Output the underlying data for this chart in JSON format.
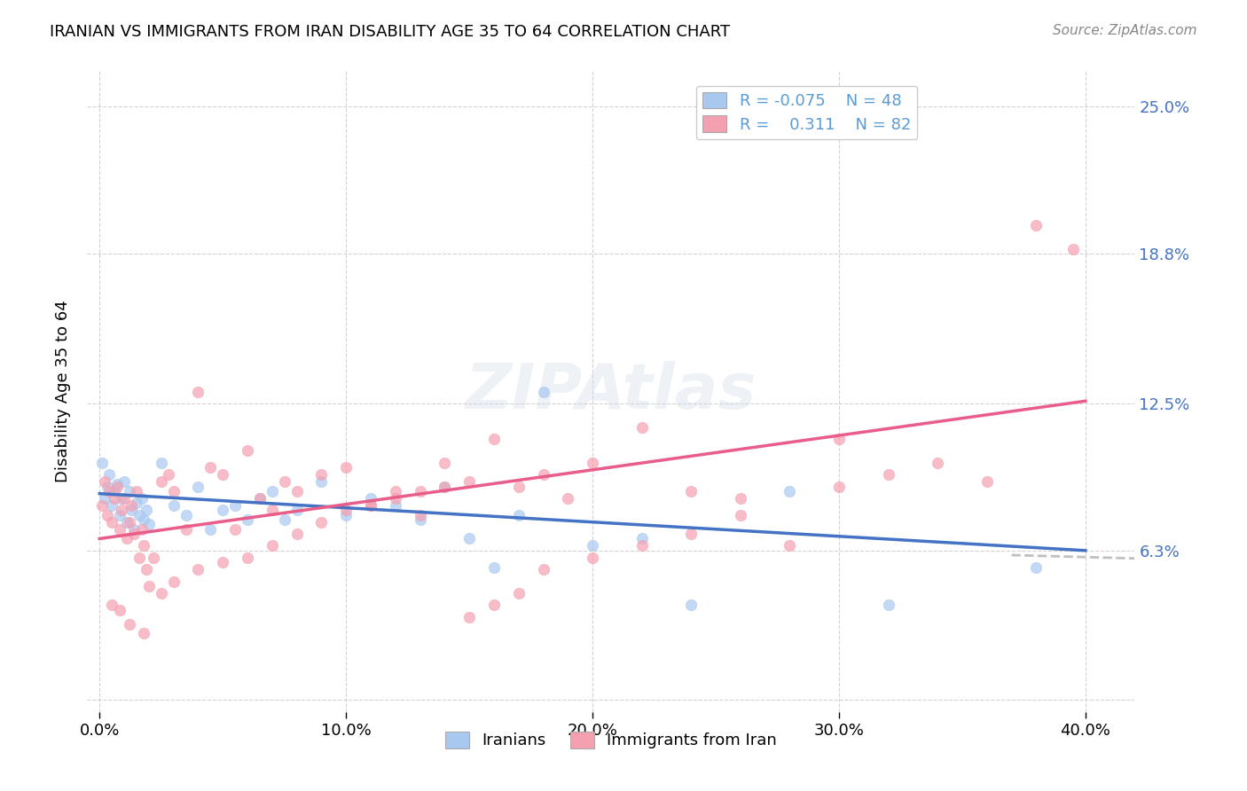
{
  "title": "IRANIAN VS IMMIGRANTS FROM IRAN DISABILITY AGE 35 TO 64 CORRELATION CHART",
  "source": "Source: ZipAtlas.com",
  "ylabel": "Disability Age 35 to 64",
  "xlim": [
    0.0,
    0.4
  ],
  "ylim": [
    0.0,
    0.25
  ],
  "yticks": [
    0.0,
    0.063,
    0.125,
    0.188,
    0.25
  ],
  "ytick_labels": [
    "",
    "6.3%",
    "12.5%",
    "18.8%",
    "25.0%"
  ],
  "xtick_labels": [
    "0.0%",
    "10.0%",
    "20.0%",
    "30.0%",
    "40.0%"
  ],
  "xticks": [
    0.0,
    0.1,
    0.2,
    0.3,
    0.4
  ],
  "series1_label": "Iranians",
  "series2_label": "Immigrants from Iran",
  "series1_color": "#a8c8f0",
  "series2_color": "#f4a0b0",
  "series1_R": "-0.075",
  "series1_N": "48",
  "series2_R": "0.311",
  "series2_N": "82",
  "legend_R_color": "#5b9bd5",
  "series1_x": [
    0.001,
    0.002,
    0.003,
    0.004,
    0.005,
    0.006,
    0.007,
    0.008,
    0.009,
    0.01,
    0.011,
    0.012,
    0.013,
    0.014,
    0.015,
    0.016,
    0.017,
    0.018,
    0.019,
    0.02,
    0.025,
    0.03,
    0.035,
    0.04,
    0.045,
    0.05,
    0.055,
    0.06,
    0.065,
    0.07,
    0.075,
    0.08,
    0.09,
    0.1,
    0.11,
    0.12,
    0.13,
    0.14,
    0.15,
    0.16,
    0.17,
    0.18,
    0.2,
    0.22,
    0.24,
    0.28,
    0.32,
    0.38
  ],
  "series1_y": [
    0.1,
    0.085,
    0.09,
    0.095,
    0.082,
    0.088,
    0.091,
    0.078,
    0.085,
    0.092,
    0.075,
    0.088,
    0.08,
    0.072,
    0.083,
    0.078,
    0.085,
    0.076,
    0.08,
    0.074,
    0.1,
    0.082,
    0.078,
    0.09,
    0.072,
    0.08,
    0.082,
    0.076,
    0.085,
    0.088,
    0.076,
    0.08,
    0.092,
    0.078,
    0.085,
    0.082,
    0.076,
    0.09,
    0.068,
    0.056,
    0.078,
    0.13,
    0.065,
    0.068,
    0.04,
    0.088,
    0.04,
    0.056
  ],
  "series2_x": [
    0.001,
    0.002,
    0.003,
    0.004,
    0.005,
    0.006,
    0.007,
    0.008,
    0.009,
    0.01,
    0.011,
    0.012,
    0.013,
    0.014,
    0.015,
    0.016,
    0.017,
    0.018,
    0.019,
    0.02,
    0.022,
    0.025,
    0.028,
    0.03,
    0.035,
    0.04,
    0.045,
    0.05,
    0.055,
    0.06,
    0.065,
    0.07,
    0.075,
    0.08,
    0.09,
    0.1,
    0.11,
    0.12,
    0.13,
    0.14,
    0.15,
    0.16,
    0.17,
    0.18,
    0.19,
    0.2,
    0.22,
    0.24,
    0.26,
    0.28,
    0.3,
    0.32,
    0.34,
    0.36,
    0.38,
    0.395,
    0.005,
    0.008,
    0.012,
    0.018,
    0.025,
    0.03,
    0.04,
    0.05,
    0.06,
    0.07,
    0.08,
    0.09,
    0.1,
    0.11,
    0.12,
    0.13,
    0.14,
    0.15,
    0.16,
    0.17,
    0.18,
    0.2,
    0.22,
    0.24,
    0.26,
    0.3
  ],
  "series2_y": [
    0.082,
    0.092,
    0.078,
    0.088,
    0.075,
    0.085,
    0.09,
    0.072,
    0.08,
    0.085,
    0.068,
    0.075,
    0.082,
    0.07,
    0.088,
    0.06,
    0.072,
    0.065,
    0.055,
    0.048,
    0.06,
    0.092,
    0.095,
    0.088,
    0.072,
    0.13,
    0.098,
    0.095,
    0.072,
    0.105,
    0.085,
    0.08,
    0.092,
    0.088,
    0.095,
    0.098,
    0.082,
    0.088,
    0.078,
    0.1,
    0.092,
    0.11,
    0.09,
    0.095,
    0.085,
    0.1,
    0.115,
    0.088,
    0.078,
    0.065,
    0.11,
    0.095,
    0.1,
    0.092,
    0.2,
    0.19,
    0.04,
    0.038,
    0.032,
    0.028,
    0.045,
    0.05,
    0.055,
    0.058,
    0.06,
    0.065,
    0.07,
    0.075,
    0.08,
    0.082,
    0.085,
    0.088,
    0.09,
    0.035,
    0.04,
    0.045,
    0.055,
    0.06,
    0.065,
    0.07,
    0.085,
    0.09
  ],
  "trendline1_x": [
    0.0,
    0.4
  ],
  "trendline1_y": [
    0.087,
    0.063
  ],
  "trendline2_x": [
    0.0,
    0.4
  ],
  "trendline2_y": [
    0.068,
    0.126
  ],
  "trendline1_color": "#4472c4",
  "trendline2_color": "#e85d8a",
  "trendline_extend_color": "#c0c0c0",
  "watermark": "ZIPAtlas",
  "background_color": "#ffffff",
  "grid_color": "#c0c0c0",
  "marker_size": 80,
  "marker_alpha": 0.7,
  "marker_edge_width": 0.5
}
